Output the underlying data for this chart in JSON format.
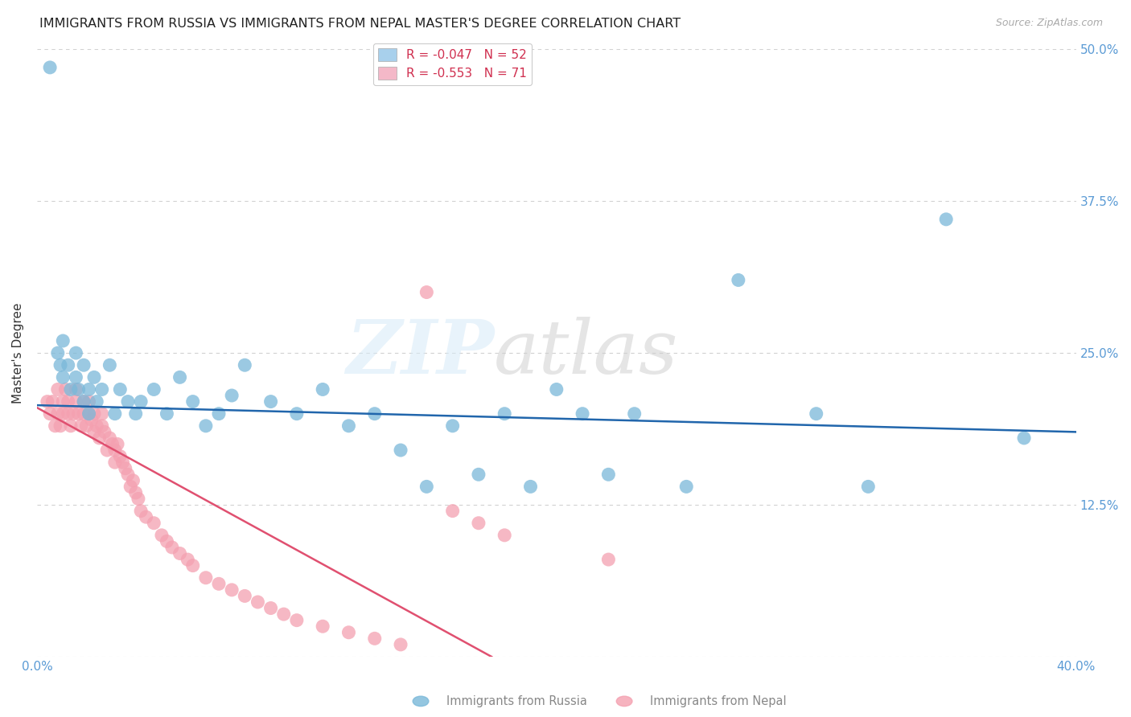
{
  "title": "IMMIGRANTS FROM RUSSIA VS IMMIGRANTS FROM NEPAL MASTER'S DEGREE CORRELATION CHART",
  "source": "Source: ZipAtlas.com",
  "ylabel": "Master's Degree",
  "yticks": [
    0.0,
    0.125,
    0.25,
    0.375,
    0.5
  ],
  "ytick_labels": [
    "",
    "12.5%",
    "25.0%",
    "37.5%",
    "50.0%"
  ],
  "xlim": [
    0.0,
    0.4
  ],
  "ylim": [
    0.0,
    0.5
  ],
  "russia_color": "#7ab8d9",
  "nepal_color": "#f4a0b0",
  "russia_line_color": "#2166ac",
  "nepal_line_color": "#e05070",
  "axis_color": "#5b9bd5",
  "grid_color": "#cccccc",
  "title_fontsize": 11.5,
  "axis_label_fontsize": 11,
  "tick_label_fontsize": 11,
  "source_fontsize": 9,
  "legend_russia_color": "#a8d0ec",
  "legend_nepal_color": "#f4b8c8",
  "legend_russia_label": "R = -0.047   N = 52",
  "legend_nepal_label": "R = -0.553   N = 71",
  "russia_line": [
    0.0,
    0.4,
    0.207,
    0.185
  ],
  "nepal_line": [
    0.0,
    0.175,
    0.205,
    0.0
  ],
  "russia_scatter_x": [
    0.005,
    0.008,
    0.009,
    0.01,
    0.01,
    0.012,
    0.013,
    0.015,
    0.015,
    0.016,
    0.018,
    0.018,
    0.02,
    0.02,
    0.022,
    0.023,
    0.025,
    0.028,
    0.03,
    0.032,
    0.035,
    0.038,
    0.04,
    0.045,
    0.05,
    0.055,
    0.06,
    0.065,
    0.07,
    0.075,
    0.08,
    0.09,
    0.1,
    0.11,
    0.12,
    0.13,
    0.14,
    0.15,
    0.16,
    0.17,
    0.18,
    0.19,
    0.2,
    0.21,
    0.22,
    0.23,
    0.25,
    0.27,
    0.3,
    0.32,
    0.35,
    0.38
  ],
  "russia_scatter_y": [
    0.485,
    0.25,
    0.24,
    0.26,
    0.23,
    0.24,
    0.22,
    0.25,
    0.23,
    0.22,
    0.21,
    0.24,
    0.22,
    0.2,
    0.23,
    0.21,
    0.22,
    0.24,
    0.2,
    0.22,
    0.21,
    0.2,
    0.21,
    0.22,
    0.2,
    0.23,
    0.21,
    0.19,
    0.2,
    0.215,
    0.24,
    0.21,
    0.2,
    0.22,
    0.19,
    0.2,
    0.17,
    0.14,
    0.19,
    0.15,
    0.2,
    0.14,
    0.22,
    0.2,
    0.15,
    0.2,
    0.14,
    0.31,
    0.2,
    0.14,
    0.36,
    0.18
  ],
  "nepal_scatter_x": [
    0.004,
    0.005,
    0.006,
    0.007,
    0.008,
    0.008,
    0.009,
    0.01,
    0.01,
    0.011,
    0.012,
    0.012,
    0.013,
    0.014,
    0.015,
    0.015,
    0.016,
    0.017,
    0.018,
    0.018,
    0.019,
    0.02,
    0.02,
    0.021,
    0.022,
    0.022,
    0.023,
    0.024,
    0.025,
    0.025,
    0.026,
    0.027,
    0.028,
    0.029,
    0.03,
    0.03,
    0.031,
    0.032,
    0.033,
    0.034,
    0.035,
    0.036,
    0.037,
    0.038,
    0.039,
    0.04,
    0.042,
    0.045,
    0.048,
    0.05,
    0.052,
    0.055,
    0.058,
    0.06,
    0.065,
    0.07,
    0.075,
    0.08,
    0.085,
    0.09,
    0.095,
    0.1,
    0.11,
    0.12,
    0.13,
    0.14,
    0.15,
    0.16,
    0.17,
    0.18,
    0.22
  ],
  "nepal_scatter_y": [
    0.21,
    0.2,
    0.21,
    0.19,
    0.2,
    0.22,
    0.19,
    0.21,
    0.2,
    0.22,
    0.2,
    0.21,
    0.19,
    0.2,
    0.21,
    0.22,
    0.2,
    0.19,
    0.21,
    0.2,
    0.19,
    0.2,
    0.21,
    0.195,
    0.2,
    0.185,
    0.19,
    0.18,
    0.19,
    0.2,
    0.185,
    0.17,
    0.18,
    0.175,
    0.17,
    0.16,
    0.175,
    0.165,
    0.16,
    0.155,
    0.15,
    0.14,
    0.145,
    0.135,
    0.13,
    0.12,
    0.115,
    0.11,
    0.1,
    0.095,
    0.09,
    0.085,
    0.08,
    0.075,
    0.065,
    0.06,
    0.055,
    0.05,
    0.045,
    0.04,
    0.035,
    0.03,
    0.025,
    0.02,
    0.015,
    0.01,
    0.3,
    0.12,
    0.11,
    0.1,
    0.08
  ]
}
